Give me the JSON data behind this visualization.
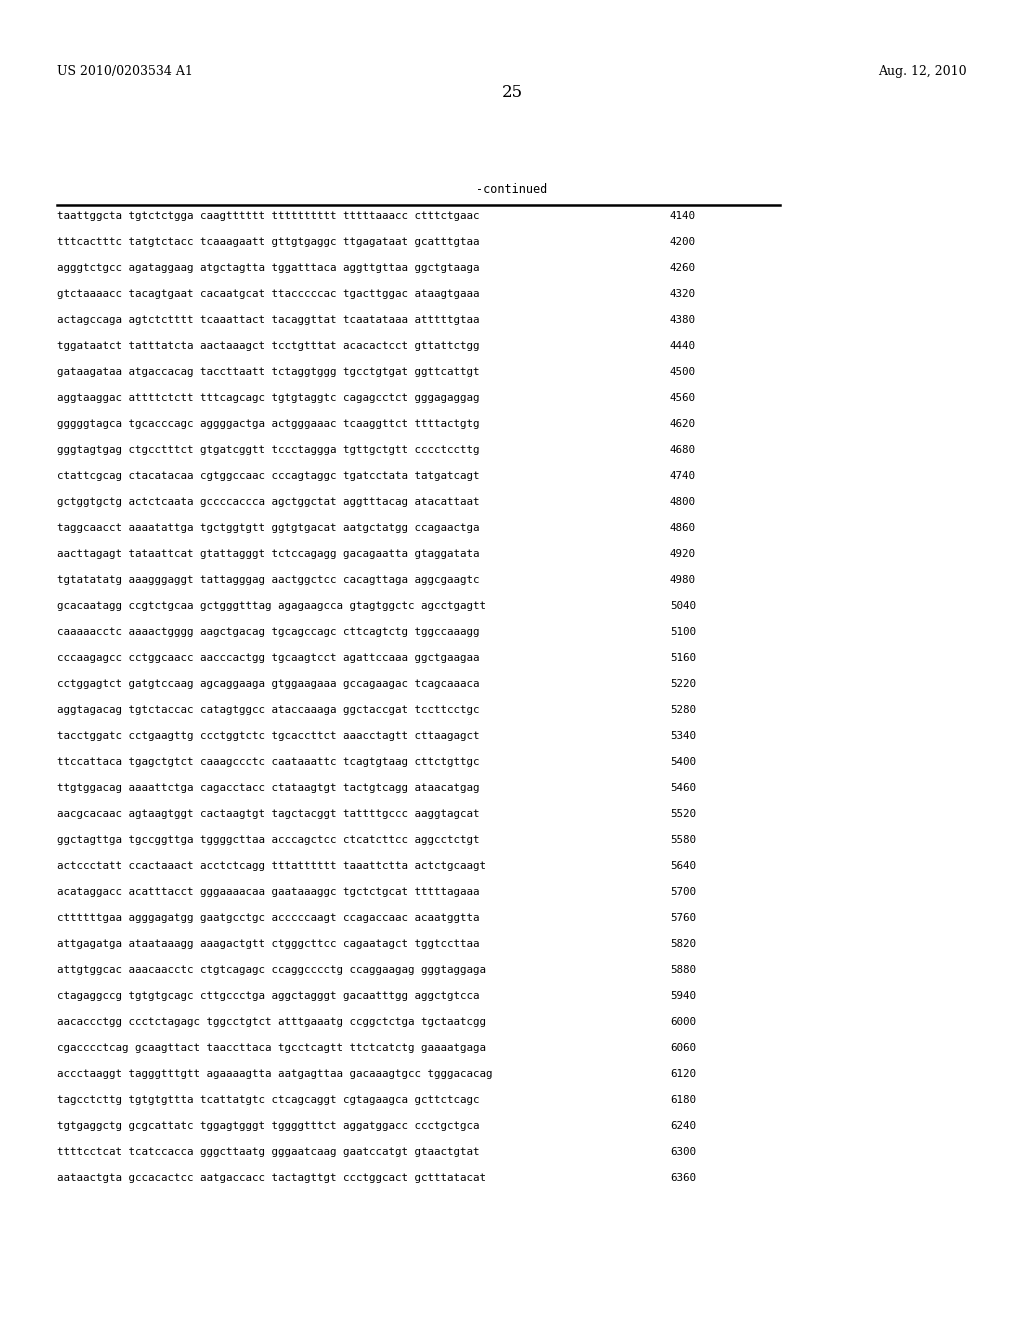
{
  "left_header": "US 2010/0203534 A1",
  "right_header": "Aug. 12, 2010",
  "page_number": "25",
  "continued_label": "-continued",
  "background_color": "#ffffff",
  "text_color": "#000000",
  "font_size_header": 9.0,
  "font_size_page": 12.0,
  "font_size_content": 7.8,
  "font_size_continued": 8.5,
  "sequence_lines": [
    [
      "taattggcta tgtctctgga caagtttttt tttttttttt tttttaaacc ctttctgaac",
      "4140"
    ],
    [
      "tttcactttc tatgtctacc tcaaagaatt gttgtgaggc ttgagataat gcatttgtaa",
      "4200"
    ],
    [
      "agggtctgcc agataggaag atgctagtta tggatttaca aggttgttaa ggctgtaaga",
      "4260"
    ],
    [
      "gtctaaaacc tacagtgaat cacaatgcat ttacccccac tgacttggac ataagtgaaa",
      "4320"
    ],
    [
      "actagccaga agtctctttt tcaaattact tacaggttat tcaatataaa atttttgtaa",
      "4380"
    ],
    [
      "tggataatct tatttatcta aactaaagct tcctgtttat acacactcct gttattctgg",
      "4440"
    ],
    [
      "gataagataa atgaccacag taccttaatt tctaggtggg tgcctgtgat ggttcattgt",
      "4500"
    ],
    [
      "aggtaaggac attttctctt tttcagcagc tgtgtaggtc cagagcctct gggagaggag",
      "4560"
    ],
    [
      "gggggtagca tgcacccagc aggggactga actgggaaac tcaaggttct ttttactgtg",
      "4620"
    ],
    [
      "gggtagtgag ctgcctttct gtgatcggtt tccctaggga tgttgctgtt cccctccttg",
      "4680"
    ],
    [
      "ctattcgcag ctacatacaa cgtggccaac cccagtaggc tgatcctata tatgatcagt",
      "4740"
    ],
    [
      "gctggtgctg actctcaata gccccaccca agctggctat aggtttacag atacattaat",
      "4800"
    ],
    [
      "taggcaacct aaaatattga tgctggtgtt ggtgtgacat aatgctatgg ccagaactga",
      "4860"
    ],
    [
      "aacttagagt tataattcat gtattagggt tctccagagg gacagaatta gtaggatata",
      "4920"
    ],
    [
      "tgtatatatg aaagggaggt tattagggag aactggctcc cacagttaga aggcgaagtc",
      "4980"
    ],
    [
      "gcacaatagg ccgtctgcaa gctgggtttag agagaagcca gtagtggctc agcctgagtt",
      "5040"
    ],
    [
      "caaaaacctc aaaactgggg aagctgacag tgcagccagc cttcagtctg tggccaaagg",
      "5100"
    ],
    [
      "cccaagagcc cctggcaacc aacccactgg tgcaagtcct agattccaaa ggctgaagaa",
      "5160"
    ],
    [
      "cctggagtct gatgtccaag agcaggaaga gtggaagaaa gccagaagac tcagcaaaca",
      "5220"
    ],
    [
      "aggtagacag tgtctaccac catagtggcc ataccaaaga ggctaccgat tccttcctgc",
      "5280"
    ],
    [
      "tacctggatc cctgaagttg ccctggtctc tgcaccttct aaacctagtt cttaagagct",
      "5340"
    ],
    [
      "ttccattaca tgagctgtct caaagccctc caataaattc tcagtgtaag cttctgttgc",
      "5400"
    ],
    [
      "ttgtggacag aaaattctga cagacctacc ctataagtgt tactgtcagg ataacatgag",
      "5460"
    ],
    [
      "aacgcacaac agtaagtggt cactaagtgt tagctacggt tattttgccc aaggtagcat",
      "5520"
    ],
    [
      "ggctagttga tgccggttga tggggcttaa acccagctcc ctcatcttcc aggcctctgt",
      "5580"
    ],
    [
      "actccctatt ccactaaact acctctcagg tttatttttt taaattctta actctgcaagt",
      "5640"
    ],
    [
      "acataggacc acatttacct gggaaaacaa gaataaaggc tgctctgcat tttttagaaa",
      "5700"
    ],
    [
      "cttttttgaa agggagatgg gaatgcctgc acccccaagt ccagaccaac acaatggtta",
      "5760"
    ],
    [
      "attgagatga ataataaagg aaagactgtt ctgggcttcc cagaatagct tggtccttaa",
      "5820"
    ],
    [
      "attgtggcac aaacaacctc ctgtcagagc ccaggcccctg ccaggaagag gggtaggaga",
      "5880"
    ],
    [
      "ctagaggccg tgtgtgcagc cttgccctga aggctagggt gacaatttgg aggctgtcca",
      "5940"
    ],
    [
      "aacaccctgg ccctctagagc tggcctgtct atttgaaatg ccggctctga tgctaatcgg",
      "6000"
    ],
    [
      "cgacccctcag gcaagttact taaccttaca tgcctcagtt ttctcatctg gaaaatgaga",
      "6060"
    ],
    [
      "accctaaggt tagggtttgtt agaaaagtta aatgagttaa gacaaagtgcc tgggacacag",
      "6120"
    ],
    [
      "tagcctcttg tgtgtgttta tcattatgtc ctcagcaggt cgtagaagca gcttctcagc",
      "6180"
    ],
    [
      "tgtgaggctg gcgcattatc tggagtgggt tggggtttct aggatggacc ccctgctgca",
      "6240"
    ],
    [
      "ttttcctcat tcatccacca gggcttaatg gggaatcaag gaatccatgt gtaactgtat",
      "6300"
    ],
    [
      "aataactgta gccacactcc aatgaccacc tactagttgt ccctggcact gctttatacat",
      "6360"
    ]
  ]
}
